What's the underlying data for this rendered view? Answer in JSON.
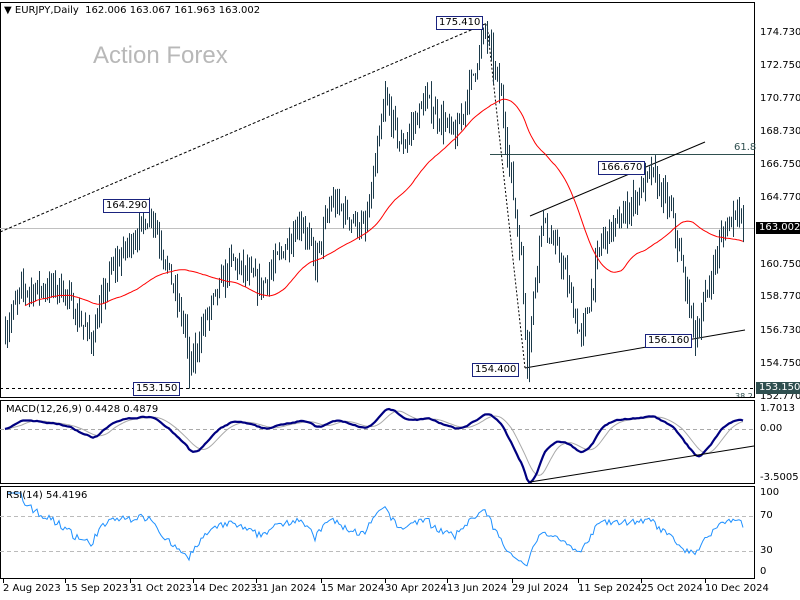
{
  "header": {
    "symbol": "EURJPY,Daily",
    "ohlc": "162.006 163.067 161.963 163.002",
    "watermark": "Action Forex"
  },
  "price_axis": [
    "174.730",
    "172.750",
    "170.770",
    "168.730",
    "166.750",
    "164.770",
    "160.750",
    "158.770",
    "156.730",
    "154.750",
    "152.770"
  ],
  "current_price_tag": "163.002",
  "level_tag": "153.150",
  "fib_labels": {
    "f618": "61.8",
    "f382": "38.2"
  },
  "annotations": {
    "high": "175.410",
    "h1": "164.290",
    "h2": "166.670",
    "low1": "153.150",
    "low2": "154.400",
    "low3": "156.160"
  },
  "macd": {
    "label": "MACD(12,26,9) 0.4428 0.4879",
    "axis": [
      "1.7013",
      "0.00",
      "-3.5005"
    ]
  },
  "rsi": {
    "label": "RSI(14) 54.4196",
    "axis": [
      "100",
      "70",
      "30",
      "0"
    ]
  },
  "dates": [
    "2 Aug 2023",
    "15 Sep 2023",
    "31 Oct 2023",
    "14 Dec 2023",
    "31 Jan 2024",
    "15 Mar 2024",
    "30 Apr 2024",
    "13 Jun 2024",
    "29 Jul 2024",
    "11 Sep 2024",
    "25 Oct 2024",
    "10 Dec 2024"
  ],
  "colors": {
    "bars": "#1c3a4a",
    "ma": "#ff0000",
    "macd": "#000080",
    "signal": "#aaaaaa",
    "rsi": "#1e90ff",
    "tag": "#000000",
    "level": "#2f4f4f"
  },
  "chart_data": {
    "type": "ohlc",
    "waypoints": [
      [
        0,
        156.8
      ],
      [
        8,
        159.2
      ],
      [
        28,
        159.4
      ],
      [
        43,
        156.2
      ],
      [
        53,
        160.4
      ],
      [
        73,
        164.0
      ],
      [
        90,
        156.8
      ],
      [
        92,
        154.2
      ],
      [
        98,
        156.8
      ],
      [
        113,
        161.0
      ],
      [
        128,
        159.4
      ],
      [
        148,
        163.5
      ],
      [
        155,
        160.8
      ],
      [
        163,
        164.6
      ],
      [
        180,
        162.8
      ],
      [
        190,
        170.7
      ],
      [
        198,
        167.8
      ],
      [
        210,
        170.7
      ],
      [
        225,
        168.4
      ],
      [
        240,
        174.9
      ],
      [
        248,
        170.7
      ],
      [
        258,
        161.0
      ],
      [
        261,
        155.0
      ],
      [
        268,
        163.5
      ],
      [
        278,
        161.0
      ],
      [
        288,
        156.2
      ],
      [
        298,
        162.2
      ],
      [
        308,
        163.5
      ],
      [
        323,
        166.3
      ],
      [
        333,
        163.9
      ],
      [
        345,
        156.4
      ],
      [
        358,
        162.4
      ],
      [
        366,
        164.4
      ],
      [
        369,
        163.0
      ]
    ]
  }
}
